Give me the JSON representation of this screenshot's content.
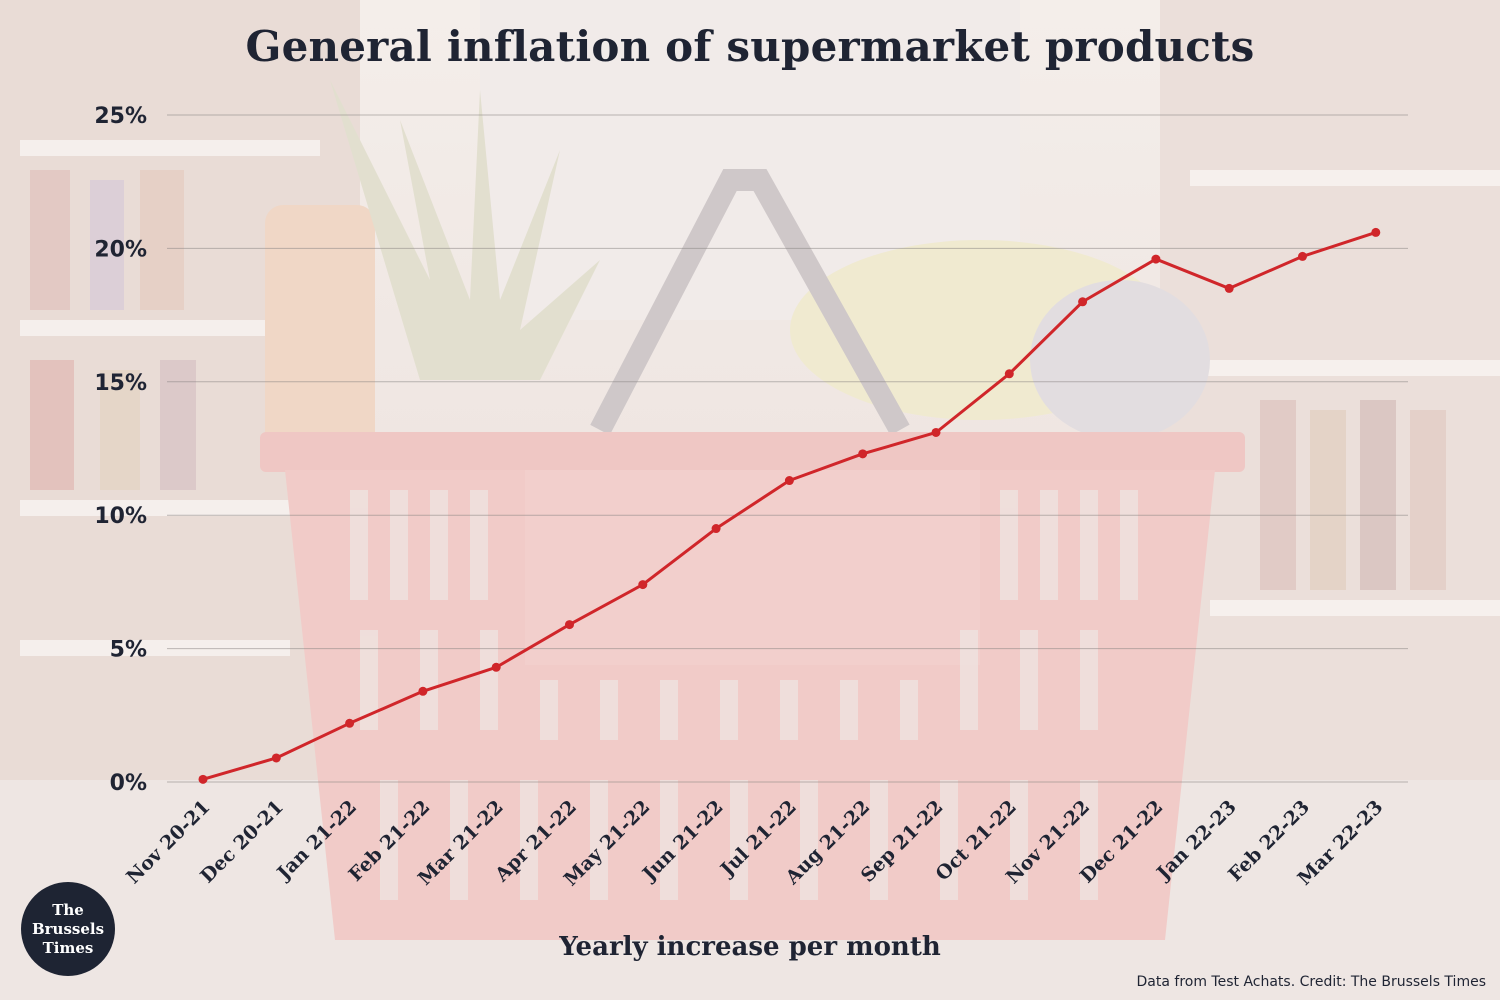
{
  "chart_data": {
    "type": "line",
    "title": "General inflation of supermarket products",
    "xlabel": "Yearly increase per month",
    "ylabel": "",
    "categories": [
      "Nov 20-21",
      "Dec 20-21",
      "Jan 21-22",
      "Feb 21-22",
      "Mar 21-22",
      "Apr 21-22",
      "May 21-22",
      "Jun 21-22",
      "Jul 21-22",
      "Aug 21-22",
      "Sep 21-22",
      "Oct 21-22",
      "Nov 21-22",
      "Dec 21-22",
      "Jan 22-23",
      "Feb 22-23",
      "Mar 22-23"
    ],
    "series": [
      {
        "values": [
          0.1,
          0.9,
          2.2,
          3.4,
          4.3,
          5.9,
          7.4,
          9.5,
          11.3,
          12.3,
          13.1,
          15.3,
          18.0,
          19.6,
          18.5,
          19.7,
          20.6
        ],
        "color": "#d0262a"
      }
    ],
    "ylim": [
      0,
      25
    ],
    "yticks": [
      0,
      5,
      10,
      15,
      20,
      25
    ],
    "ytick_labels": [
      "0%",
      "5%",
      "10%",
      "15%",
      "20%",
      "25%"
    ],
    "grid": true,
    "legend": "none"
  },
  "source_note": "Data from Test Achats. Credit: The Brussels Times",
  "logo": {
    "line1": "The",
    "line2": "Brussels",
    "line3": "Times"
  },
  "colors": {
    "title": "#1f2433",
    "line": "#d0262a",
    "logo_bg": "#1e2433"
  }
}
